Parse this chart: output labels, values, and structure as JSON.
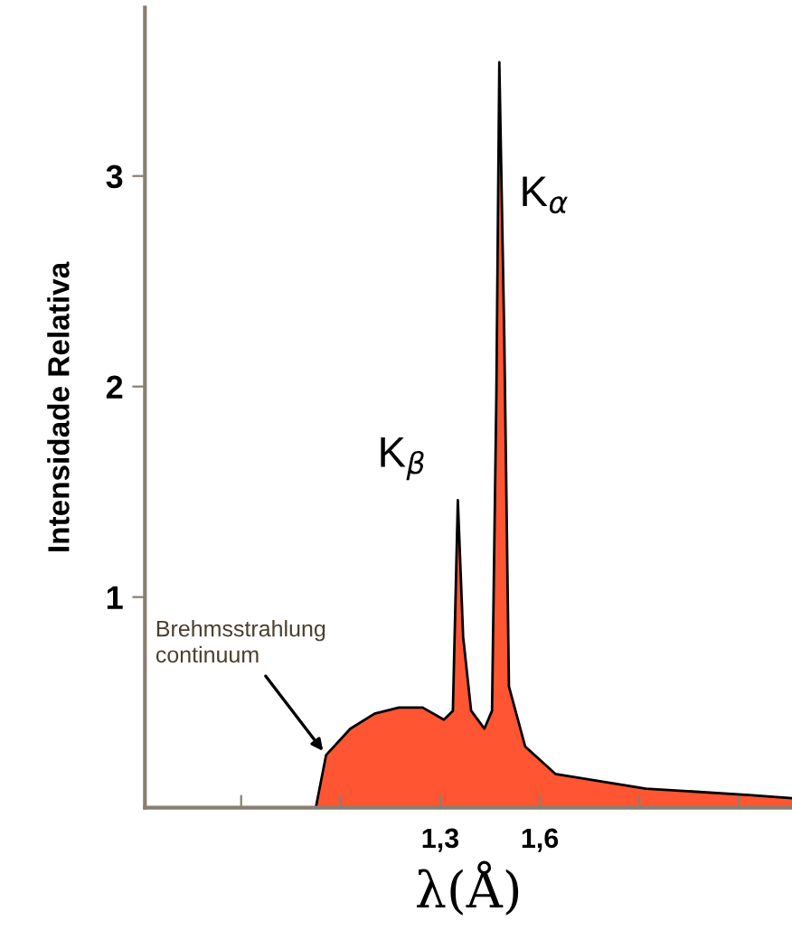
{
  "chart_data": {
    "type": "area",
    "xlabel": "λ(Å)",
    "ylabel": "Intensidade Relativa",
    "x": [
      0.925,
      0.956,
      1.029,
      1.102,
      1.175,
      1.247,
      1.311,
      1.338,
      1.353,
      1.369,
      1.393,
      1.433,
      1.456,
      1.469,
      1.478,
      1.493,
      1.507,
      1.556,
      1.647,
      1.92,
      2.23,
      2.36
    ],
    "series": [
      {
        "color": "#ff5533",
        "values": [
          0,
          0.25,
          0.375,
          0.446,
          0.475,
          0.475,
          0.418,
          0.46,
          1.46,
          0.81,
          0.46,
          0.375,
          0.46,
          1.95,
          3.54,
          2.23,
          0.575,
          0.29,
          0.16,
          0.09,
          0.06,
          0.045
        ]
      }
    ],
    "xlim": [
      0.41,
      2.36
    ],
    "ylim": [
      0,
      3.8
    ],
    "xticks": [
      {
        "value": 0.7,
        "label": null
      },
      {
        "value": 1.0,
        "label": null
      },
      {
        "value": 1.3,
        "label": "1,3"
      },
      {
        "value": 1.6,
        "label": "1,6"
      },
      {
        "value": 1.9,
        "label": null
      },
      {
        "value": 2.2,
        "label": null
      }
    ],
    "yticks": [
      1,
      2,
      3
    ],
    "annotations": [
      {
        "text": "K$_{β}$",
        "x": 1.353,
        "y": 1.46
      },
      {
        "text": "K$_{α}$",
        "x": 1.478,
        "y": 3.54
      },
      {
        "text": "Brehmsstrahlung\ncontinuum",
        "x": 0.956,
        "y": 0.25
      }
    ],
    "grid": false,
    "legend": false
  }
}
